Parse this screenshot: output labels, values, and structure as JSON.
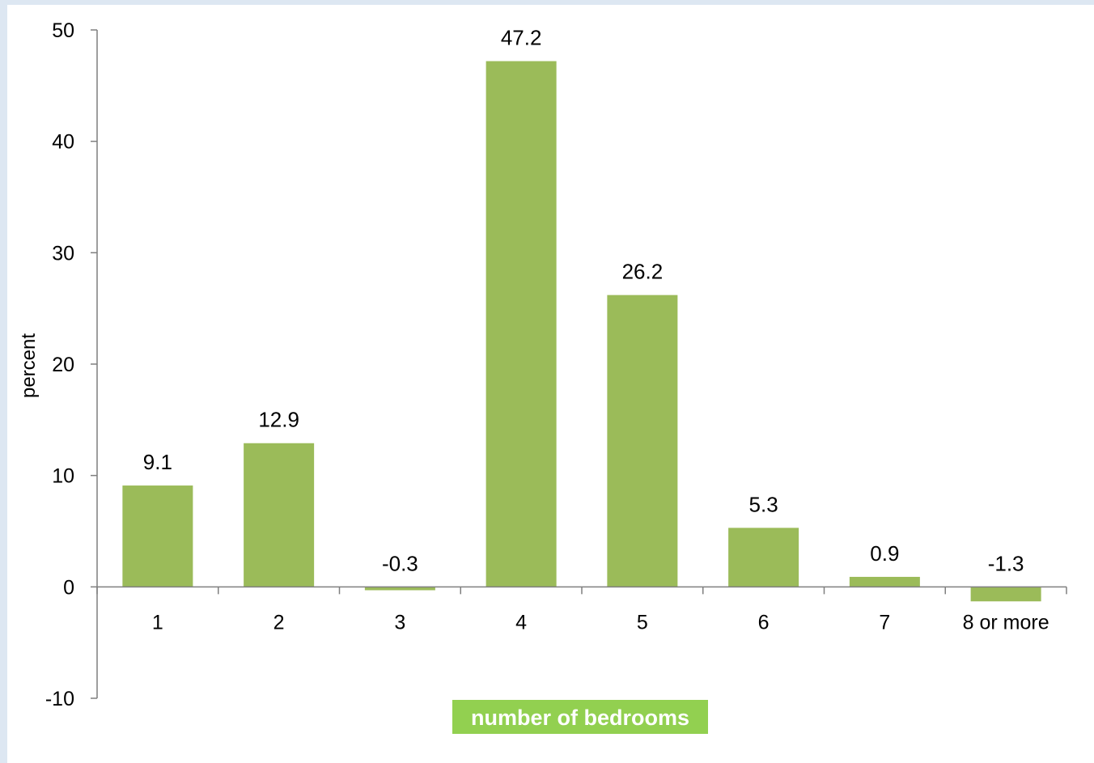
{
  "chart_data": {
    "type": "bar",
    "categories": [
      "1",
      "2",
      "3",
      "4",
      "5",
      "6",
      "7",
      "8 or more"
    ],
    "values": [
      9.1,
      12.9,
      -0.3,
      47.2,
      26.2,
      5.3,
      0.9,
      -1.3
    ],
    "data_labels": [
      "9.1",
      "12.9",
      "-0.3",
      "47.2",
      "26.2",
      "5.3",
      "0.9",
      "-1.3"
    ],
    "ylabel": "percent",
    "xlabel": "number of bedrooms",
    "ylim": [
      -10,
      50
    ],
    "yticks": [
      -10,
      0,
      10,
      20,
      30,
      40,
      50
    ],
    "ytick_labels": [
      "-10",
      "0",
      "10",
      "20",
      "30",
      "40",
      "50"
    ],
    "grid": false,
    "legend": "none",
    "colors": {
      "bar": "#9bbb59",
      "axis": "#7f7f7f",
      "xlabel_background": "#92d050",
      "xlabel_text": "#ffffff",
      "page_background": "#dde7f2",
      "plot_background": "#ffffff"
    }
  }
}
